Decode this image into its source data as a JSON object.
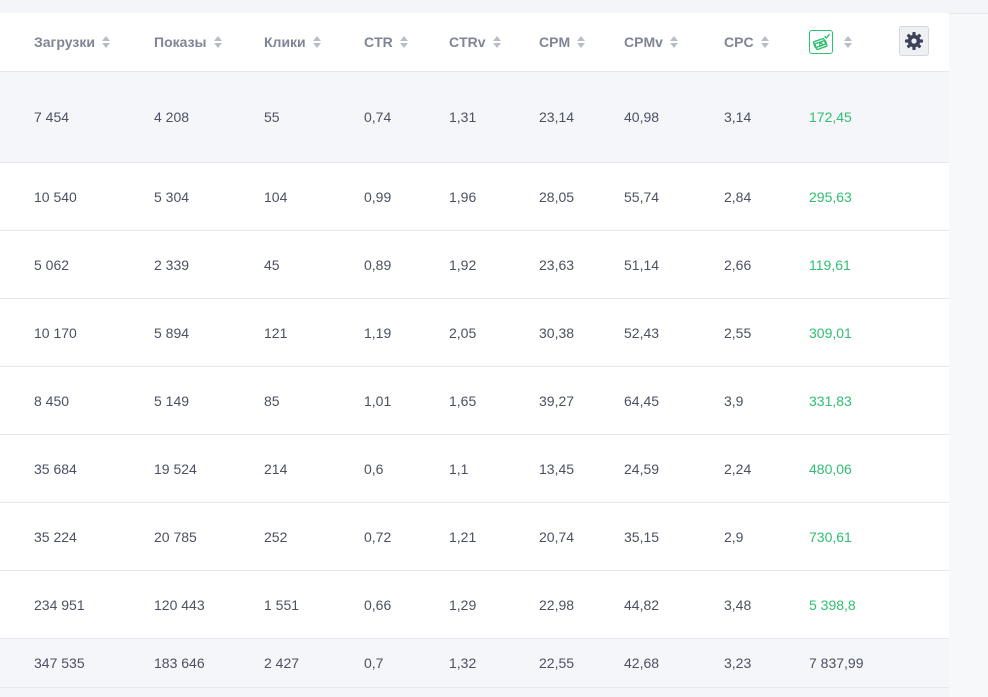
{
  "columns": [
    {
      "label": "Загрузки"
    },
    {
      "label": "Показы"
    },
    {
      "label": "Клики"
    },
    {
      "label": "CTR"
    },
    {
      "label": "CTRv"
    },
    {
      "label": "CPM"
    },
    {
      "label": "CPMv"
    },
    {
      "label": "CPC"
    },
    {
      "label": "",
      "icon": "money-check-icon"
    }
  ],
  "settings_icon": "gear-icon",
  "colors": {
    "accent_green": "#2fbf71",
    "text": "#4b5064",
    "header_text": "#7f8497"
  },
  "rows": [
    {
      "cells": [
        "7 454",
        "4 208",
        "55",
        "0,74",
        "1,31",
        "23,14",
        "40,98",
        "3,14",
        "172,45"
      ]
    },
    {
      "cells": [
        "10 540",
        "5 304",
        "104",
        "0,99",
        "1,96",
        "28,05",
        "55,74",
        "2,84",
        "295,63"
      ]
    },
    {
      "cells": [
        "5 062",
        "2 339",
        "45",
        "0,89",
        "1,92",
        "23,63",
        "51,14",
        "2,66",
        "119,61"
      ]
    },
    {
      "cells": [
        "10 170",
        "5 894",
        "121",
        "1,19",
        "2,05",
        "30,38",
        "52,43",
        "2,55",
        "309,01"
      ]
    },
    {
      "cells": [
        "8 450",
        "5 149",
        "85",
        "1,01",
        "1,65",
        "39,27",
        "64,45",
        "3,9",
        "331,83"
      ]
    },
    {
      "cells": [
        "35 684",
        "19 524",
        "214",
        "0,6",
        "1,1",
        "13,45",
        "24,59",
        "2,24",
        "480,06"
      ]
    },
    {
      "cells": [
        "35 224",
        "20 785",
        "252",
        "0,72",
        "1,21",
        "20,74",
        "35,15",
        "2,9",
        "730,61"
      ]
    },
    {
      "cells": [
        "234 951",
        "120 443",
        "1 551",
        "0,66",
        "1,29",
        "22,98",
        "44,82",
        "3,48",
        "5 398,8"
      ]
    }
  ],
  "totals": {
    "cells": [
      "347 535",
      "183 646",
      "2 427",
      "0,7",
      "1,32",
      "22,55",
      "42,68",
      "3,23",
      "7 837,99"
    ]
  }
}
